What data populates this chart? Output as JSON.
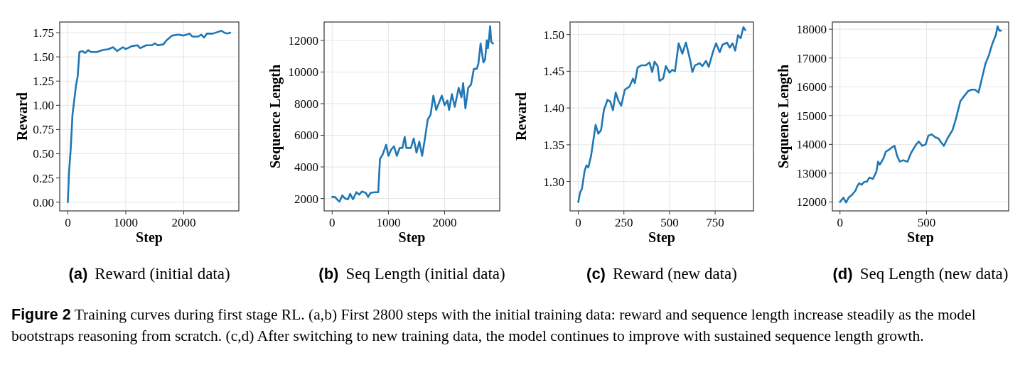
{
  "chart_data": [
    {
      "type": "line",
      "title": "(a) Reward (initial data)",
      "xlabel": "Step",
      "ylabel": "Reward",
      "grid": true,
      "xlim": [
        -140,
        2950
      ],
      "xticks": [
        0,
        1000,
        2000
      ],
      "ylim": [
        -0.09,
        1.86
      ],
      "yticks": [
        {
          "value": 0,
          "label": "0.00"
        },
        0.25,
        {
          "value": 0.5,
          "label": "0.50"
        },
        0.75,
        {
          "value": 1,
          "label": "1.00"
        },
        1.25,
        {
          "value": 1.5,
          "label": "1.50"
        },
        1.75
      ],
      "x": [
        0,
        20,
        50,
        80,
        100,
        140,
        170,
        200,
        250,
        300,
        350,
        400,
        500,
        600,
        700,
        780,
        850,
        950,
        1000,
        1100,
        1200,
        1250,
        1350,
        1450,
        1500,
        1550,
        1650,
        1700,
        1800,
        1900,
        2000,
        2100,
        2150,
        2250,
        2300,
        2350,
        2400,
        2500,
        2600,
        2650,
        2700,
        2750,
        2800
      ],
      "series": [
        {
          "color": "#1f77b4",
          "values": [
            0,
            0.3,
            0.55,
            0.9,
            1.0,
            1.2,
            1.3,
            1.55,
            1.56,
            1.54,
            1.57,
            1.55,
            1.55,
            1.57,
            1.58,
            1.6,
            1.56,
            1.6,
            1.58,
            1.61,
            1.62,
            1.59,
            1.62,
            1.62,
            1.64,
            1.62,
            1.63,
            1.67,
            1.72,
            1.73,
            1.72,
            1.74,
            1.71,
            1.71,
            1.73,
            1.7,
            1.74,
            1.74,
            1.76,
            1.77,
            1.75,
            1.74,
            1.75
          ]
        }
      ],
      "annotations": [
        "Figure 2",
        "Training curves during first stage RL. (a,b) First 2800 steps with the initial training data: reward and sequence length increase steadily as the model bootstraps reasoning from scratch. (c,d) After switching to new training data, the model continues to improve with sustained sequence length growth."
      ]
    },
    {
      "type": "line",
      "title": "(b) Seq Length (initial data)",
      "xlabel": "Step",
      "ylabel": "Sequence Length",
      "grid": true,
      "xlim": [
        -143,
        2980
      ],
      "xticks": [
        0,
        1000,
        2000
      ],
      "ylim": [
        1220,
        13160
      ],
      "yticks": [
        2000,
        4000,
        6000,
        8000,
        10000,
        12000
      ],
      "x": [
        0,
        50,
        100,
        130,
        180,
        230,
        280,
        320,
        370,
        430,
        480,
        530,
        600,
        640,
        680,
        750,
        820,
        850,
        900,
        960,
        1000,
        1050,
        1100,
        1150,
        1200,
        1250,
        1290,
        1320,
        1400,
        1450,
        1500,
        1550,
        1600,
        1650,
        1700,
        1750,
        1800,
        1850,
        1950,
        2000,
        2050,
        2080,
        2130,
        2180,
        2250,
        2300,
        2330,
        2370,
        2420,
        2470,
        2520,
        2570,
        2600,
        2640,
        2690,
        2720,
        2750,
        2770,
        2790,
        2810,
        2830,
        2860
      ],
      "series": [
        {
          "color": "#1f77b4",
          "values": [
            2100,
            2100,
            1900,
            1800,
            2200,
            2000,
            1950,
            2300,
            1950,
            2400,
            2250,
            2450,
            2350,
            2100,
            2350,
            2400,
            2400,
            4500,
            4800,
            5400,
            4700,
            5100,
            5300,
            4700,
            5200,
            5200,
            5900,
            5200,
            5200,
            5800,
            4900,
            5600,
            4700,
            5800,
            7000,
            7300,
            8500,
            7600,
            8500,
            7900,
            8200,
            7600,
            8600,
            7800,
            9000,
            8400,
            9300,
            7700,
            9000,
            9200,
            10200,
            10200,
            10500,
            11800,
            10600,
            10800,
            12000,
            11500,
            12100,
            12900,
            11900,
            11800
          ]
        }
      ]
    },
    {
      "type": "line",
      "title": "(c) Reward (new data)",
      "xlabel": "Step",
      "ylabel": "Reward",
      "grid": true,
      "xlim": [
        -45,
        960
      ],
      "xticks": [
        0,
        250,
        500,
        750
      ],
      "ylim": [
        1.26,
        1.517
      ],
      "yticks": [
        {
          "value": 1.3,
          "label": "1.30"
        },
        1.35,
        {
          "value": 1.4,
          "label": "1.40"
        },
        1.45,
        {
          "value": 1.5,
          "label": "1.50"
        }
      ],
      "x": [
        0,
        10,
        20,
        35,
        45,
        55,
        70,
        85,
        95,
        110,
        125,
        140,
        160,
        175,
        190,
        205,
        220,
        235,
        255,
        280,
        300,
        310,
        325,
        345,
        370,
        390,
        405,
        418,
        435,
        445,
        465,
        480,
        500,
        515,
        530,
        550,
        570,
        590,
        615,
        625,
        640,
        665,
        680,
        700,
        715,
        740,
        755,
        775,
        790,
        815,
        830,
        845,
        860,
        875,
        890,
        905,
        915
      ],
      "series": [
        {
          "color": "#1f77b4",
          "values": [
            1.272,
            1.285,
            1.29,
            1.315,
            1.322,
            1.319,
            1.335,
            1.36,
            1.377,
            1.365,
            1.37,
            1.397,
            1.411,
            1.409,
            1.397,
            1.421,
            1.41,
            1.403,
            1.425,
            1.429,
            1.44,
            1.434,
            1.455,
            1.458,
            1.458,
            1.462,
            1.449,
            1.463,
            1.457,
            1.437,
            1.44,
            1.457,
            1.448,
            1.452,
            1.45,
            1.488,
            1.474,
            1.489,
            1.463,
            1.449,
            1.458,
            1.461,
            1.457,
            1.464,
            1.456,
            1.478,
            1.488,
            1.476,
            1.486,
            1.489,
            1.482,
            1.488,
            1.478,
            1.499,
            1.495,
            1.51,
            1.506
          ]
        }
      ]
    },
    {
      "type": "line",
      "title": "(d) Seq Length (new data)",
      "xlabel": "Step",
      "ylabel": "Sequence Length",
      "grid": true,
      "xlim": [
        -44,
        974
      ],
      "xticks": [
        0,
        500
      ],
      "ylim": [
        11690,
        18250
      ],
      "yticks": [
        12000,
        13000,
        14000,
        15000,
        16000,
        17000,
        18000
      ],
      "x": [
        0,
        20,
        35,
        50,
        70,
        90,
        100,
        110,
        125,
        140,
        155,
        170,
        190,
        210,
        220,
        230,
        250,
        265,
        280,
        300,
        315,
        330,
        345,
        365,
        390,
        410,
        440,
        455,
        475,
        495,
        510,
        530,
        550,
        570,
        580,
        600,
        620,
        650,
        670,
        695,
        720,
        740,
        760,
        780,
        800,
        820,
        840,
        860,
        880,
        900,
        910,
        920,
        930
      ],
      "series": [
        {
          "color": "#1f77b4",
          "values": [
            12000,
            12150,
            11980,
            12150,
            12250,
            12400,
            12550,
            12650,
            12600,
            12700,
            12700,
            12850,
            12800,
            13050,
            13400,
            13300,
            13500,
            13750,
            13800,
            13900,
            13950,
            13600,
            13400,
            13450,
            13400,
            13700,
            14000,
            14100,
            13950,
            14000,
            14300,
            14350,
            14250,
            14200,
            14100,
            13950,
            14200,
            14500,
            14900,
            15500,
            15700,
            15850,
            15900,
            15900,
            15800,
            16300,
            16800,
            17100,
            17500,
            17800,
            18100,
            17950,
            17950
          ]
        }
      ]
    }
  ]
}
